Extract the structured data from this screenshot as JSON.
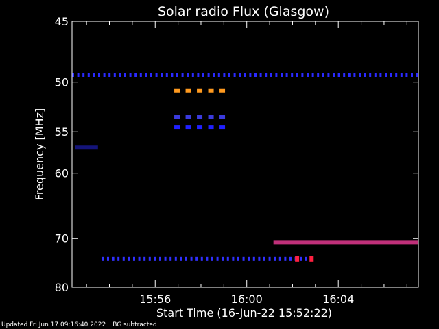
{
  "chart_data": {
    "type": "heatmap",
    "title": "Solar radio Flux (Glasgow)",
    "xlabel": "Start Time (16-Jun-22 15:52:22)",
    "ylabel": "Frequency [MHz]",
    "x_start": "15:52:22",
    "x_end": "16:07:30",
    "x_ticks": [
      "15:56",
      "16:00",
      "16:04"
    ],
    "ylim": [
      45,
      80
    ],
    "y_ticks": [
      45,
      50,
      55,
      60,
      70,
      80
    ],
    "grid": false,
    "features": [
      {
        "kind": "dotted-band",
        "freq_mhz": 49.4,
        "t_start": "15:52:22",
        "t_end": "16:07:30",
        "color": "#2a2aff"
      },
      {
        "kind": "dashed-band",
        "freq_mhz": 50.8,
        "t_start": "15:56:50",
        "t_end": "15:59:00",
        "color": "#ff9a1f"
      },
      {
        "kind": "dashed-band",
        "freq_mhz": 53.4,
        "t_start": "15:56:50",
        "t_end": "15:59:00",
        "color": "#3b3bdd"
      },
      {
        "kind": "dashed-band",
        "freq_mhz": 54.5,
        "t_start": "15:56:50",
        "t_end": "15:59:00",
        "color": "#2020ff"
      },
      {
        "kind": "band",
        "freq_mhz": 56.8,
        "t_start": "15:52:30",
        "t_end": "15:53:30",
        "color": "#14147a"
      },
      {
        "kind": "band",
        "freq_mhz": 70.7,
        "t_start": "16:01:10",
        "t_end": "16:07:30",
        "color": "#c0307a"
      },
      {
        "kind": "dotted-band",
        "freq_mhz": 73.9,
        "t_start": "15:53:40",
        "t_end": "16:02:50",
        "color": "#3030ff"
      },
      {
        "kind": "spot",
        "freq_mhz": 73.9,
        "t": "16:02:12",
        "color": "#ff2040"
      },
      {
        "kind": "spot",
        "freq_mhz": 73.9,
        "t": "16:02:50",
        "color": "#ff2040"
      }
    ]
  },
  "footer": {
    "updated": "Updated Fri Jun 17 09:16:40 2022",
    "note": "BG subtracted"
  }
}
